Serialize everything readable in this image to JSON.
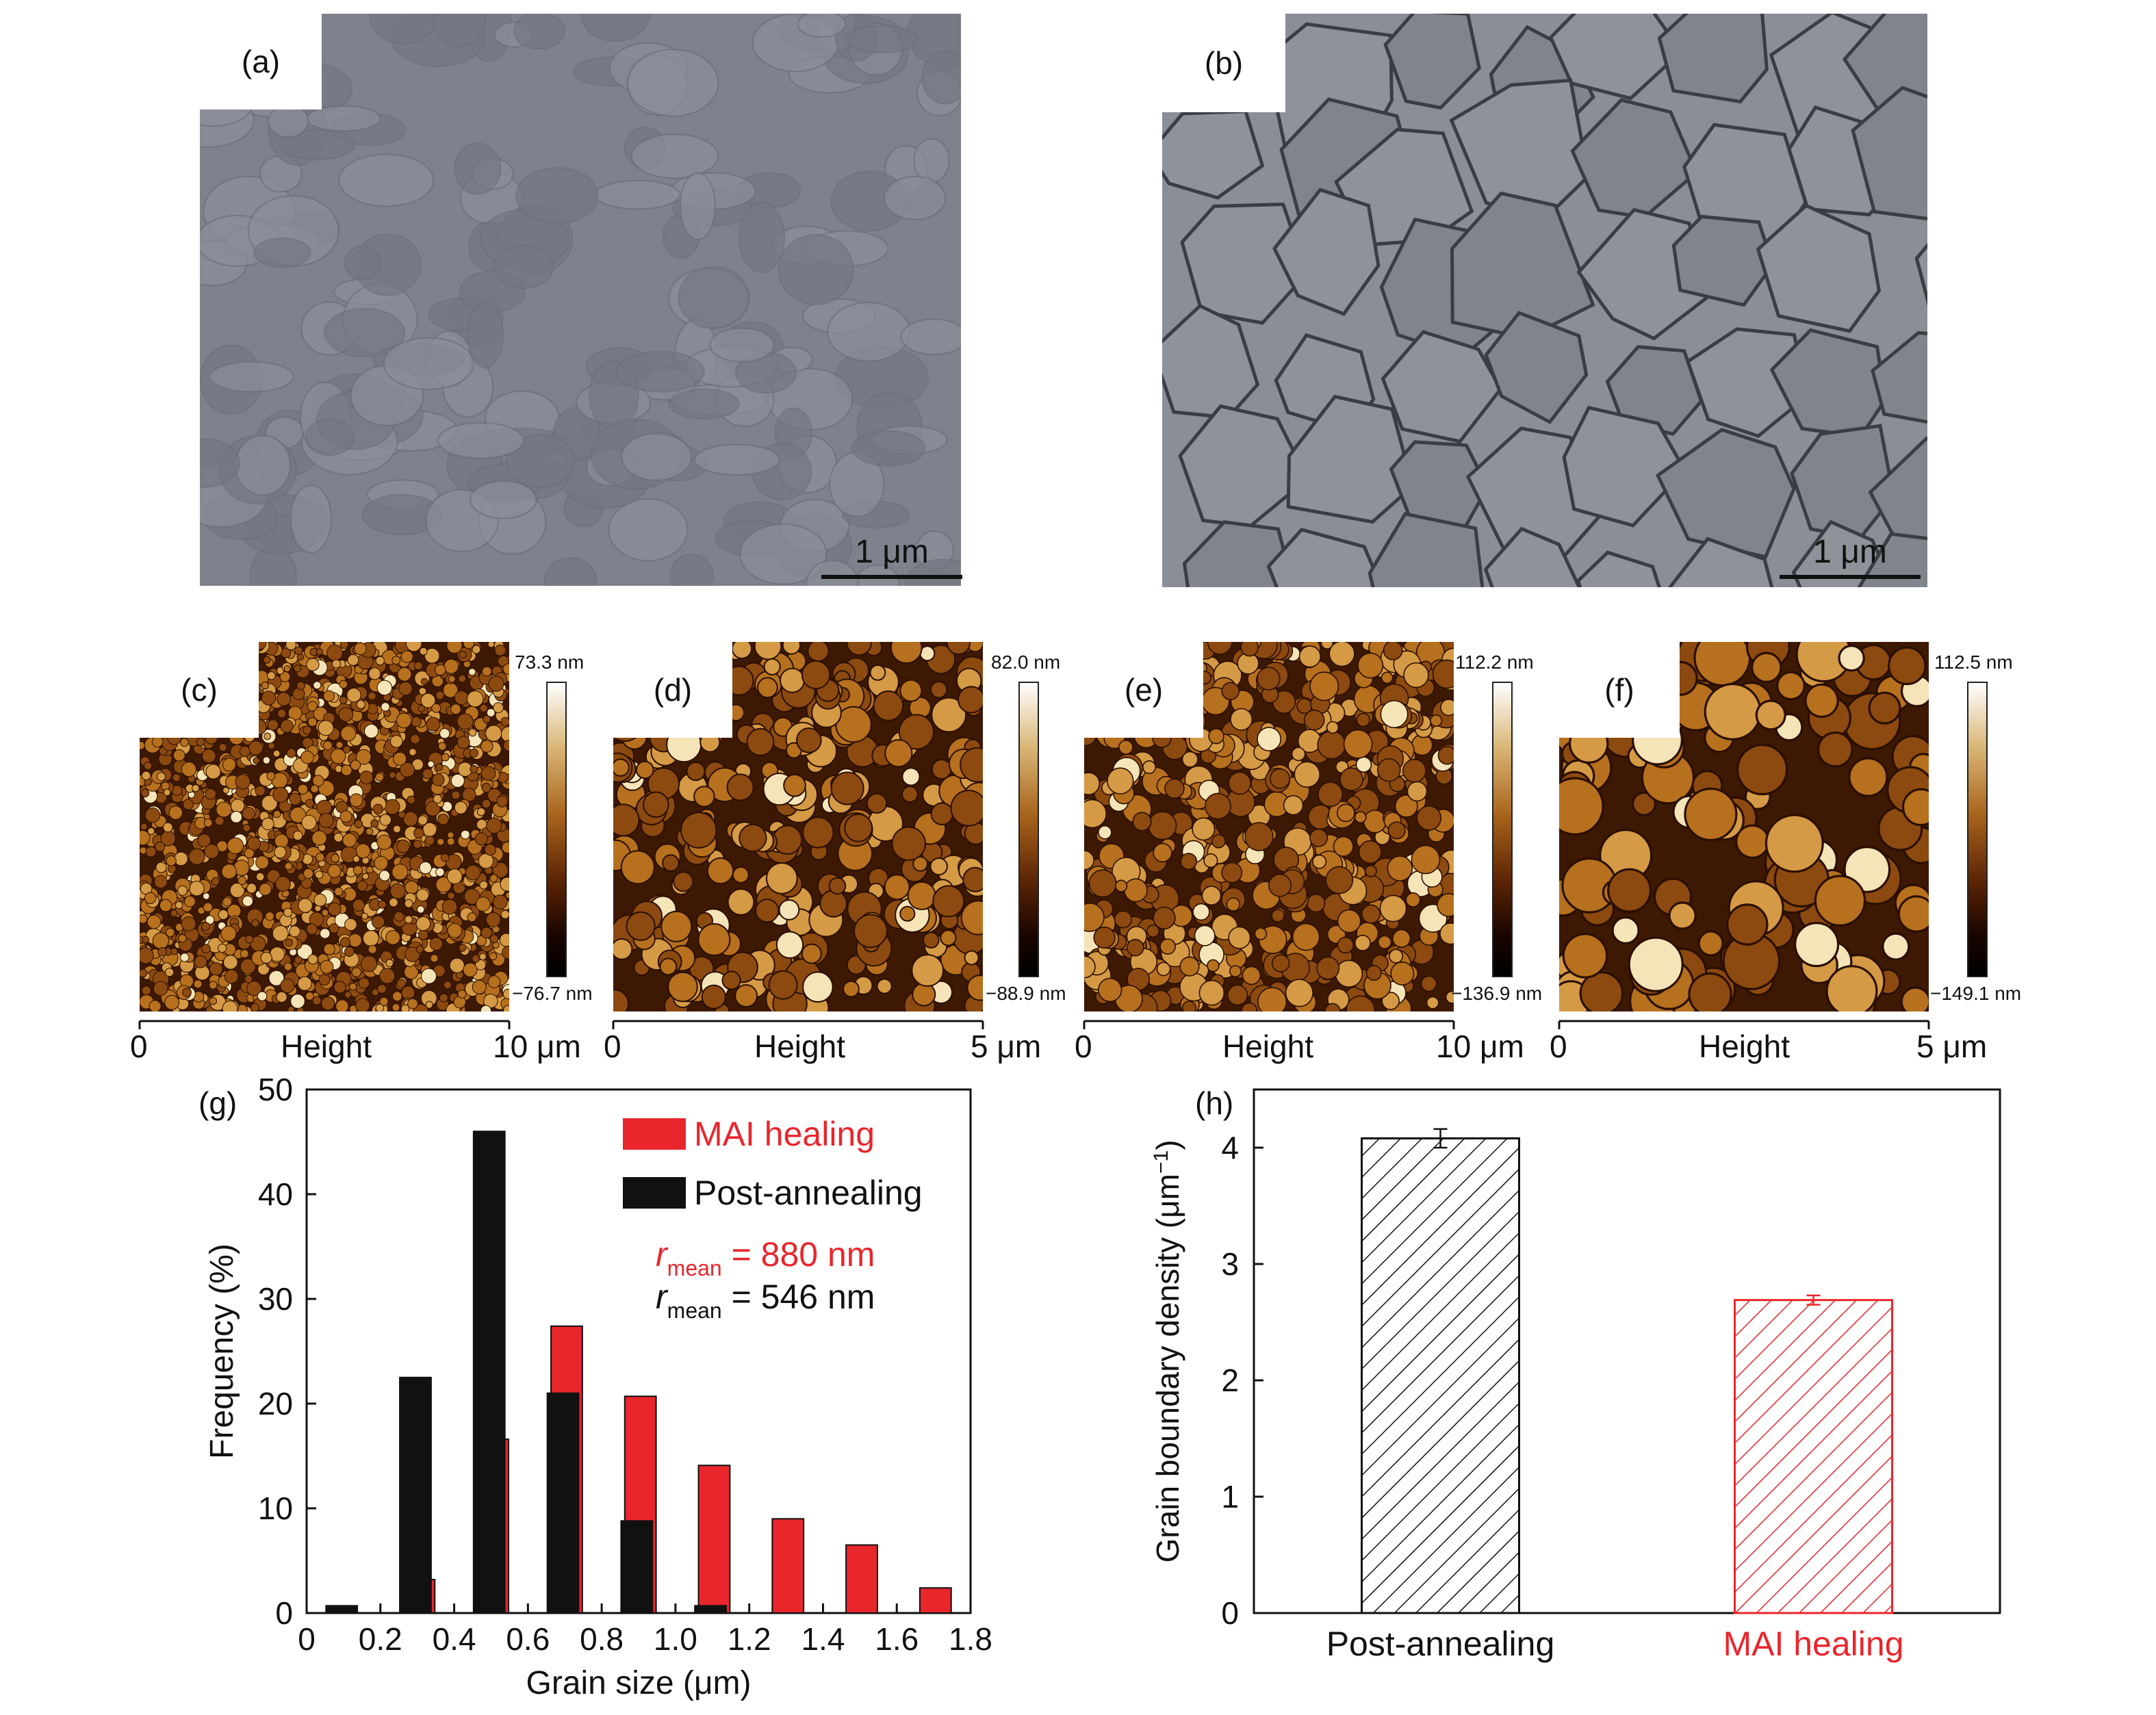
{
  "panels": {
    "a": {
      "label": "(a)",
      "scale": "1 μm"
    },
    "b": {
      "label": "(b)",
      "scale": "1 μm"
    },
    "c": {
      "label": "(c)",
      "cmax": "73.3 nm",
      "cmin": "−76.7 nm",
      "x0": "0",
      "xmid": "Height",
      "x1": "10 μm"
    },
    "d": {
      "label": "(d)",
      "cmax": "82.0 nm",
      "cmin": "−88.9 nm",
      "x0": "0",
      "xmid": "Height",
      "x1": "5 μm"
    },
    "e": {
      "label": "(e)",
      "cmax": "112.2 nm",
      "cmin": "−136.9 nm",
      "x0": "0",
      "xmid": "Height",
      "x1": "10 μm"
    },
    "f": {
      "label": "(f)",
      "cmax": "112.5 nm",
      "cmin": "−149.1 nm",
      "x0": "0",
      "xmid": "Height",
      "x1": "5 μm"
    }
  },
  "colors": {
    "red": "#e8262c",
    "black": "#111111"
  },
  "chart_data": [
    {
      "panel": "(g)",
      "type": "bar",
      "xlabel": "Grain size (μm)",
      "ylabel": "Frequency (%)",
      "xlim": [
        0,
        1.8
      ],
      "ylim": [
        0,
        50
      ],
      "xticks": [
        "0",
        "0.2",
        "0.4",
        "0.6",
        "0.8",
        "1.0",
        "1.2",
        "1.4",
        "1.6",
        "1.8"
      ],
      "yticks": [
        "0",
        "10",
        "20",
        "30",
        "40",
        "50"
      ],
      "legend": "top-right",
      "series": [
        {
          "name": "MAI healing",
          "color": "#e8262c",
          "x": [
            0.3,
            0.5,
            0.7,
            0.9,
            1.1,
            1.3,
            1.5,
            1.7
          ],
          "values": [
            3.2,
            16.6,
            27.4,
            20.7,
            14.1,
            9.0,
            6.5,
            2.4
          ]
        },
        {
          "name": "Post-annealing",
          "color": "#111111",
          "x": [
            0.1,
            0.3,
            0.5,
            0.7,
            0.9,
            1.1
          ],
          "values": [
            0.7,
            22.5,
            46.0,
            21.0,
            8.8,
            0.7
          ]
        }
      ],
      "annotations": [
        {
          "r": "r",
          "sub": "mean",
          "text": " = 880 nm",
          "color": "#e8262c"
        },
        {
          "r": "r",
          "sub": "mean",
          "text": " = 546 nm",
          "color": "#111111"
        }
      ]
    },
    {
      "panel": "(h)",
      "type": "bar",
      "ylabel": "Grain boundary density (μm",
      "ylabel_sup": "−1",
      "ylabel_end": ")",
      "ylim": [
        0,
        4.5
      ],
      "yticks": [
        "0",
        "1",
        "2",
        "3",
        "4"
      ],
      "categories": [
        "Post-annealing",
        "MAI healing"
      ],
      "values": [
        4.08,
        2.69
      ],
      "errors": [
        0.08,
        0.04
      ],
      "colors": [
        "#111111",
        "#e8262c"
      ]
    }
  ]
}
